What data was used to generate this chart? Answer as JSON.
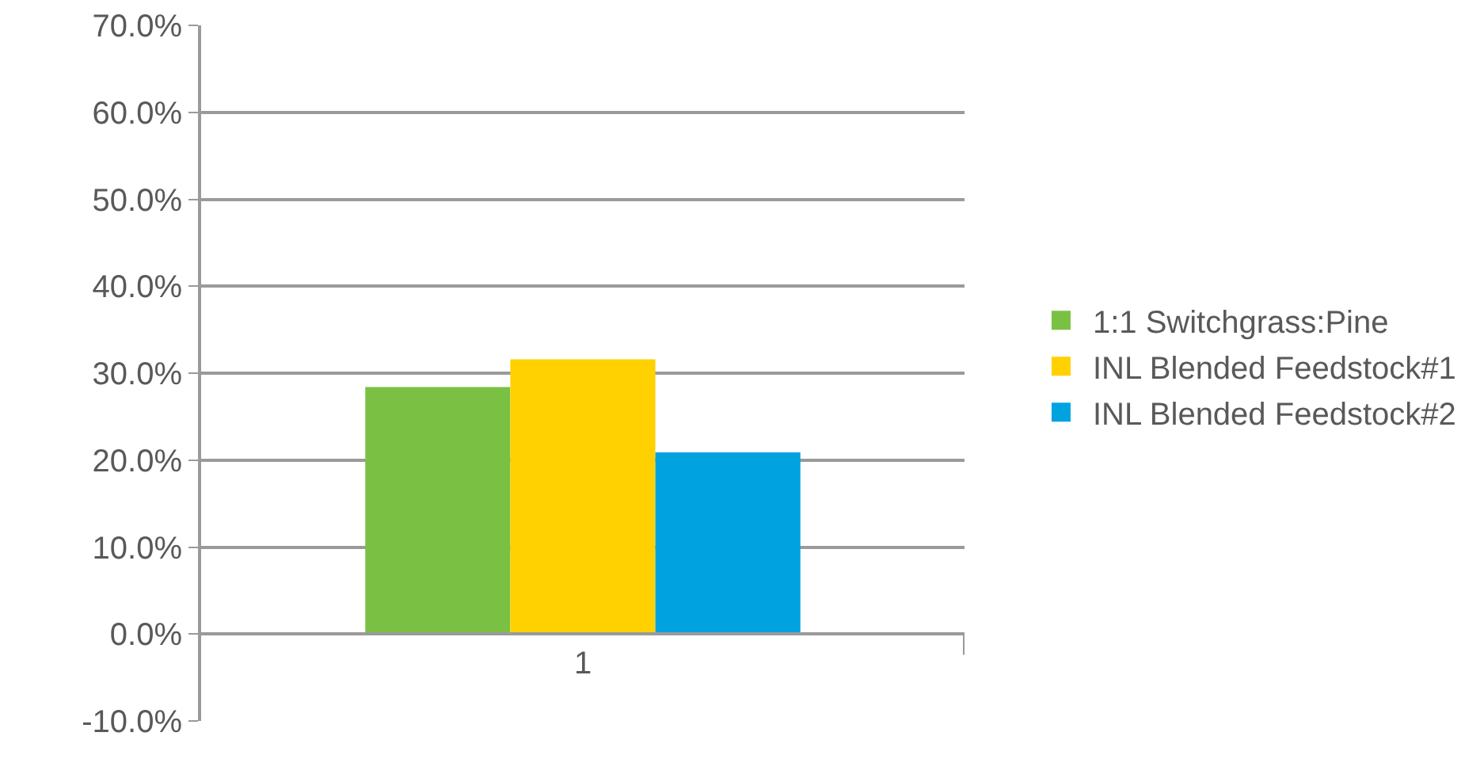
{
  "chart_data": {
    "type": "bar",
    "categories": [
      "1"
    ],
    "series": [
      {
        "name": "1:1 Switchgrass:Pine",
        "color": "#7ac143",
        "values": [
          28.4
        ]
      },
      {
        "name": "INL Blended Feedstock#1",
        "color": "#ffd100",
        "values": [
          31.6
        ]
      },
      {
        "name": "INL Blended Feedstock#2",
        "color": "#00a3e0",
        "values": [
          20.9
        ]
      }
    ],
    "ylim": [
      -10,
      70
    ],
    "yticks": [
      {
        "value": -10,
        "label": "-10.0%"
      },
      {
        "value": 0,
        "label": "0.0%"
      },
      {
        "value": 10,
        "label": "10.0%"
      },
      {
        "value": 20,
        "label": "20.0%"
      },
      {
        "value": 30,
        "label": "30.0%"
      },
      {
        "value": 40,
        "label": "40.0%"
      },
      {
        "value": 50,
        "label": "50.0%"
      },
      {
        "value": 60,
        "label": "60.0%"
      },
      {
        "value": 70,
        "label": "70.0%"
      }
    ],
    "grid": "y",
    "legend": "right"
  }
}
